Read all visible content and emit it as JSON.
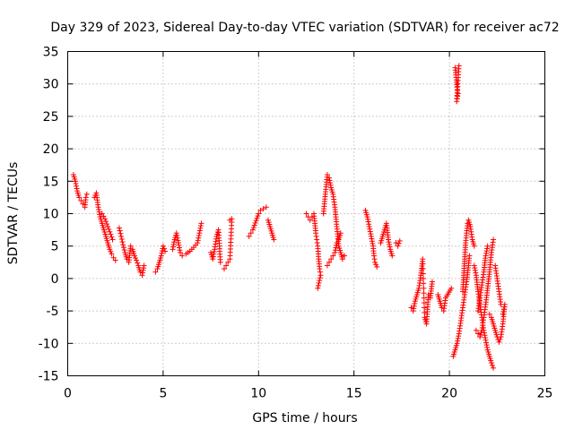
{
  "chart_data": {
    "type": "scatter",
    "title": "Day 329 of 2023, Sidereal Day-to-day VTEC variation (SDTVAR) for receiver ac72",
    "xlabel": "GPS time / hours",
    "ylabel": "SDTVAR / TECUs",
    "xlim": [
      0,
      25
    ],
    "ylim": [
      -15,
      35
    ],
    "xticks": [
      0,
      5,
      10,
      15,
      20,
      25
    ],
    "yticks": [
      -15,
      -10,
      -5,
      0,
      5,
      10,
      15,
      20,
      25,
      30,
      35
    ],
    "grid": true,
    "marker": "+",
    "color": "#ff0000",
    "segments": [
      [
        [
          0.3,
          16.0
        ],
        [
          0.4,
          15.0
        ],
        [
          0.5,
          13.5
        ],
        [
          0.6,
          12.5
        ],
        [
          0.7,
          12.0
        ],
        [
          0.8,
          11.5
        ],
        [
          0.9,
          11.0
        ],
        [
          0.95,
          12.5
        ],
        [
          1.0,
          13.0
        ]
      ],
      [
        [
          1.4,
          12.5
        ],
        [
          1.5,
          13.2
        ],
        [
          1.6,
          11.0
        ],
        [
          1.7,
          9.5
        ],
        [
          1.8,
          8.5
        ],
        [
          1.9,
          7.5
        ],
        [
          2.0,
          6.5
        ],
        [
          2.1,
          5.5
        ],
        [
          2.2,
          4.5
        ],
        [
          2.3,
          3.8
        ],
        [
          2.4,
          3.2
        ],
        [
          2.5,
          2.8
        ]
      ],
      [
        [
          1.8,
          10.0
        ],
        [
          1.95,
          9.2
        ],
        [
          2.05,
          8.4
        ],
        [
          2.15,
          7.6
        ],
        [
          2.25,
          6.8
        ],
        [
          2.35,
          6.0
        ]
      ],
      [
        [
          2.7,
          7.8
        ],
        [
          2.8,
          6.5
        ],
        [
          2.9,
          5.2
        ],
        [
          3.0,
          4.0
        ],
        [
          3.1,
          3.0
        ],
        [
          3.2,
          2.5
        ],
        [
          3.3,
          5.0
        ],
        [
          3.4,
          4.5
        ],
        [
          3.5,
          3.5
        ],
        [
          3.6,
          2.8
        ],
        [
          3.7,
          2.0
        ],
        [
          3.8,
          1.0
        ],
        [
          3.9,
          0.5
        ],
        [
          4.0,
          2.0
        ]
      ],
      [
        [
          4.6,
          1.0
        ],
        [
          4.7,
          1.5
        ],
        [
          4.8,
          2.5
        ],
        [
          4.9,
          3.5
        ],
        [
          5.0,
          5.0
        ],
        [
          5.1,
          4.2
        ]
      ],
      [
        [
          5.5,
          4.5
        ],
        [
          5.6,
          6.0
        ],
        [
          5.7,
          7.0
        ],
        [
          5.8,
          5.5
        ],
        [
          5.9,
          4.0
        ],
        [
          6.0,
          3.5
        ],
        [
          6.2,
          3.8
        ],
        [
          6.4,
          4.2
        ],
        [
          6.6,
          4.8
        ],
        [
          6.8,
          5.5
        ],
        [
          7.0,
          8.5
        ]
      ],
      [
        [
          7.5,
          4.0
        ],
        [
          7.6,
          3.0
        ],
        [
          7.7,
          4.5
        ],
        [
          7.8,
          6.5
        ],
        [
          7.9,
          7.5
        ],
        [
          8.0,
          2.5
        ]
      ],
      [
        [
          8.2,
          1.5
        ],
        [
          8.3,
          2.0
        ],
        [
          8.4,
          2.5
        ],
        [
          8.5,
          3.0
        ],
        [
          8.6,
          9.2
        ],
        [
          8.5,
          9.0
        ]
      ],
      [
        [
          9.5,
          6.5
        ],
        [
          9.6,
          7.0
        ],
        [
          9.7,
          7.5
        ],
        [
          10.0,
          10.0
        ],
        [
          10.1,
          10.5
        ],
        [
          10.4,
          11.0
        ]
      ],
      [
        [
          10.5,
          9.0
        ],
        [
          10.6,
          8.0
        ],
        [
          10.7,
          7.0
        ],
        [
          10.8,
          6.0
        ]
      ],
      [
        [
          12.5,
          10.0
        ],
        [
          12.6,
          9.5
        ],
        [
          12.7,
          9.0
        ],
        [
          12.8,
          9.5
        ],
        [
          12.9,
          10.0
        ],
        [
          13.0,
          7.0
        ],
        [
          13.05,
          6.0
        ],
        [
          13.1,
          5.0
        ],
        [
          13.15,
          3.0
        ],
        [
          13.2,
          1.5
        ],
        [
          13.25,
          0.5
        ],
        [
          13.1,
          -1.5
        ]
      ],
      [
        [
          13.4,
          10.0
        ],
        [
          13.5,
          13.0
        ],
        [
          13.6,
          16.0
        ],
        [
          13.7,
          15.5
        ],
        [
          13.8,
          14.0
        ],
        [
          13.9,
          13.0
        ],
        [
          14.0,
          11.0
        ],
        [
          14.05,
          9.5
        ],
        [
          14.1,
          8.0
        ],
        [
          14.15,
          6.5
        ],
        [
          14.2,
          5.0
        ],
        [
          14.3,
          4.0
        ],
        [
          14.4,
          3.0
        ],
        [
          14.5,
          3.5
        ]
      ],
      [
        [
          13.6,
          2.0
        ],
        [
          13.7,
          2.5
        ],
        [
          13.8,
          3.0
        ],
        [
          13.9,
          3.5
        ],
        [
          14.0,
          4.0
        ],
        [
          14.1,
          5.5
        ],
        [
          14.2,
          6.0
        ],
        [
          14.3,
          7.0
        ]
      ],
      [
        [
          15.6,
          10.5
        ],
        [
          15.7,
          9.5
        ],
        [
          15.8,
          8.0
        ],
        [
          15.9,
          6.5
        ],
        [
          16.0,
          5.0
        ],
        [
          16.05,
          3.5
        ],
        [
          16.1,
          2.5
        ],
        [
          16.2,
          1.8
        ]
      ],
      [
        [
          16.4,
          5.5
        ],
        [
          16.5,
          6.5
        ],
        [
          16.6,
          7.5
        ],
        [
          16.7,
          8.5
        ],
        [
          16.8,
          6.0
        ],
        [
          16.9,
          4.5
        ],
        [
          17.0,
          3.5
        ]
      ],
      [
        [
          17.2,
          5.5
        ],
        [
          17.3,
          5.0
        ],
        [
          17.4,
          5.8
        ]
      ],
      [
        [
          18.0,
          -4.5
        ],
        [
          18.1,
          -5.0
        ],
        [
          18.2,
          -3.5
        ],
        [
          18.4,
          -1.5
        ],
        [
          18.5,
          0.5
        ],
        [
          18.6,
          3.0
        ],
        [
          18.7,
          -6.0
        ],
        [
          18.8,
          -7.0
        ],
        [
          18.9,
          -2.5
        ],
        [
          19.0,
          -3.0
        ],
        [
          19.1,
          -0.5
        ]
      ],
      [
        [
          19.4,
          -2.5
        ],
        [
          19.5,
          -3.5
        ],
        [
          19.6,
          -4.5
        ],
        [
          19.7,
          -5.0
        ],
        [
          19.8,
          -3.0
        ],
        [
          20.1,
          -1.5
        ]
      ],
      [
        [
          20.2,
          -12.0
        ],
        [
          20.3,
          -11.0
        ],
        [
          20.4,
          -10.0
        ],
        [
          20.5,
          -8.5
        ],
        [
          20.6,
          -6.5
        ],
        [
          20.7,
          -4.5
        ],
        [
          20.8,
          -2.5
        ],
        [
          20.9,
          -0.5
        ],
        [
          21.0,
          2.0
        ],
        [
          21.05,
          3.5
        ]
      ],
      [
        [
          20.3,
          32.5
        ],
        [
          20.35,
          31.0
        ],
        [
          20.4,
          29.5
        ],
        [
          20.45,
          28.5
        ],
        [
          20.38,
          27.3
        ],
        [
          20.5,
          32.8
        ]
      ],
      [
        [
          20.7,
          -2.0
        ],
        [
          20.75,
          0.5
        ],
        [
          20.8,
          3.0
        ],
        [
          20.85,
          5.5
        ],
        [
          20.9,
          7.0
        ],
        [
          20.95,
          8.5
        ],
        [
          21.0,
          9.0
        ],
        [
          21.1,
          8.0
        ],
        [
          21.2,
          6.0
        ],
        [
          21.3,
          5.0
        ]
      ],
      [
        [
          21.3,
          2.0
        ],
        [
          21.4,
          0.5
        ],
        [
          21.5,
          -2.0
        ],
        [
          21.6,
          -4.0
        ],
        [
          21.7,
          -6.0
        ],
        [
          21.8,
          -8.0
        ],
        [
          21.9,
          -9.5
        ],
        [
          22.0,
          -11.0
        ],
        [
          22.1,
          -12.0
        ],
        [
          22.2,
          -13.0
        ],
        [
          22.3,
          -13.8
        ]
      ],
      [
        [
          21.4,
          -8.0
        ],
        [
          21.5,
          -8.5
        ],
        [
          21.6,
          -9.0
        ],
        [
          21.7,
          -8.0
        ],
        [
          21.8,
          -6.0
        ],
        [
          21.9,
          -4.0
        ],
        [
          22.0,
          -1.5
        ],
        [
          22.1,
          1.0
        ],
        [
          22.2,
          4.0
        ],
        [
          22.3,
          6.0
        ]
      ],
      [
        [
          21.5,
          -5.0
        ],
        [
          21.6,
          -3.0
        ],
        [
          21.7,
          -1.0
        ],
        [
          21.8,
          1.0
        ],
        [
          21.9,
          3.5
        ],
        [
          22.0,
          5.0
        ]
      ],
      [
        [
          22.1,
          -5.5
        ],
        [
          22.2,
          -6.0
        ],
        [
          22.3,
          -7.0
        ],
        [
          22.4,
          -8.0
        ],
        [
          22.5,
          -9.0
        ],
        [
          22.6,
          -9.8
        ],
        [
          22.7,
          -9.0
        ],
        [
          22.8,
          -7.0
        ],
        [
          22.9,
          -4.0
        ],
        [
          22.8,
          -5.5
        ]
      ],
      [
        [
          22.4,
          2.0
        ],
        [
          22.5,
          0.0
        ],
        [
          22.6,
          -2.0
        ],
        [
          22.7,
          -4.0
        ]
      ]
    ]
  }
}
